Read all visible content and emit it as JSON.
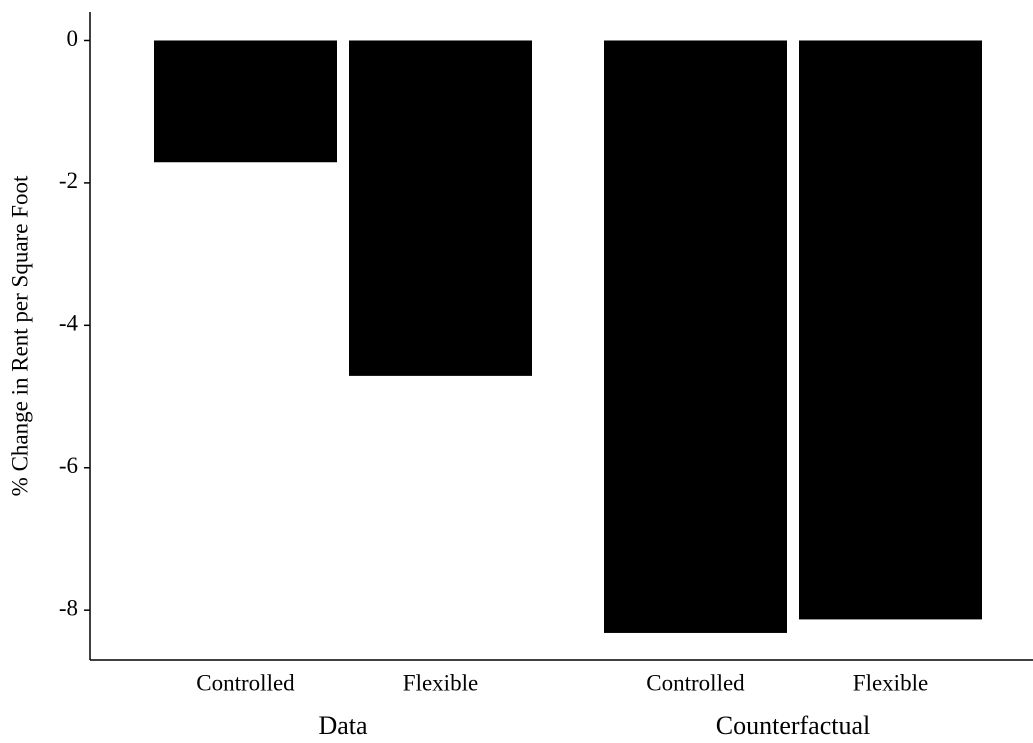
{
  "chart_data": {
    "type": "bar",
    "y_label": "% Change in Rent per Square Foot",
    "groups": [
      {
        "name": "Data",
        "categories": [
          "Controlled",
          "Flexible"
        ],
        "values": [
          -1.71,
          -4.71
        ]
      },
      {
        "name": "Counterfactual",
        "categories": [
          "Controlled",
          "Flexible"
        ],
        "values": [
          -8.32,
          -8.13
        ]
      }
    ],
    "color": "#000000",
    "ylim": [
      -8.7,
      0.4
    ],
    "yticks": [
      0,
      -2,
      -4,
      -6,
      -8
    ],
    "grid": false
  }
}
